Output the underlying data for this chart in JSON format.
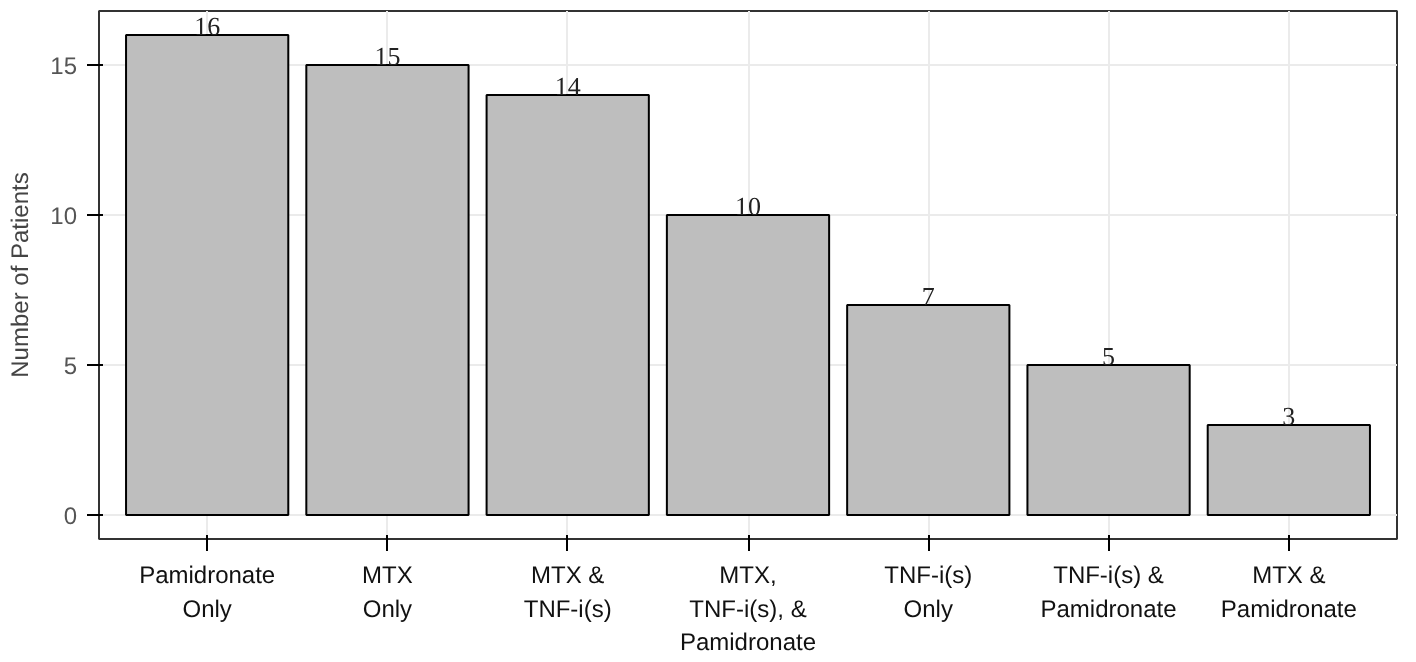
{
  "chart_data": {
    "type": "bar",
    "ylabel": "Number of Patients",
    "categories": [
      "Pamidronate\nOnly",
      "MTX\nOnly",
      "MTX &\nTNF-i(s)",
      "MTX,\nTNF-i(s), &\nPamidronate",
      "TNF-i(s)\nOnly",
      "TNF-i(s) &\nPamidronate",
      "MTX &\nPamidronate"
    ],
    "values": [
      16,
      15,
      14,
      10,
      7,
      5,
      3
    ],
    "color": "#bebebe",
    "ylim": [
      -0.8,
      16.8
    ],
    "yticks": [
      0,
      5,
      10,
      15
    ],
    "grid": true,
    "data_labels": true
  }
}
